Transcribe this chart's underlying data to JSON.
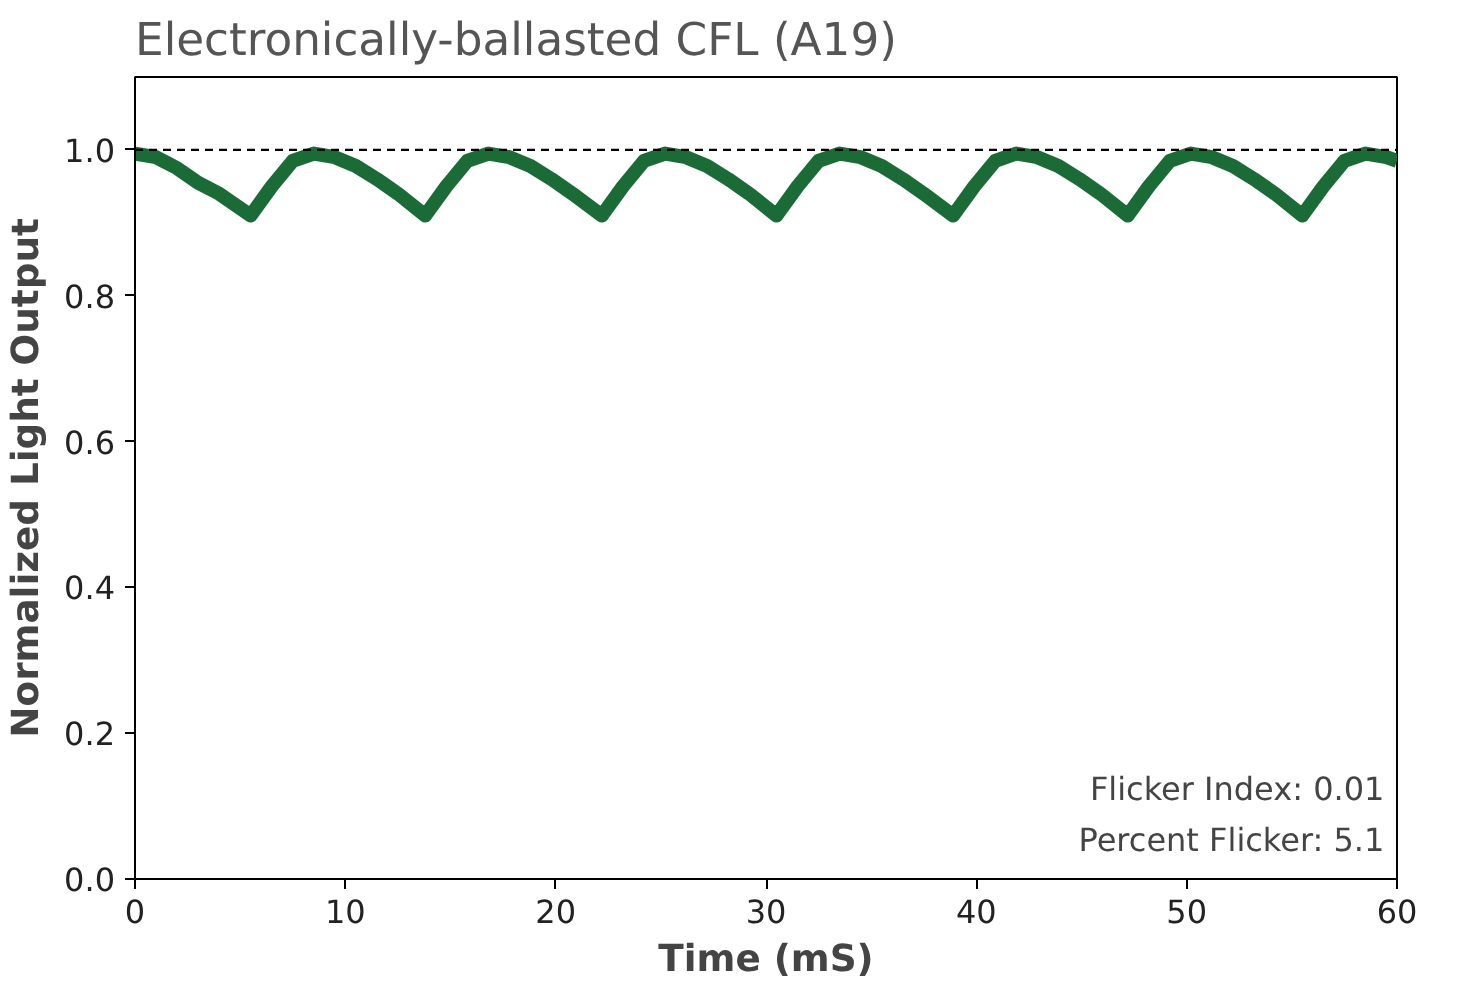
{
  "chart_data": {
    "type": "line",
    "title": "Electronically-ballasted CFL (A19)",
    "xlabel": "Time (mS)",
    "ylabel": "Normalized Light Output",
    "x": [
      0,
      1,
      2,
      3,
      4,
      5.5,
      6.5,
      7.5,
      8.5,
      9.5,
      10.5,
      11.5,
      12.5,
      13.8,
      14.8,
      15.8,
      16.8,
      17.8,
      18.8,
      19.8,
      20.8,
      22.2,
      23.2,
      24.2,
      25.2,
      26.2,
      27.2,
      28.2,
      29.2,
      30.5,
      31.5,
      32.5,
      33.5,
      34.5,
      35.5,
      36.5,
      37.5,
      38.9,
      39.9,
      40.9,
      41.9,
      42.9,
      43.9,
      44.9,
      45.9,
      47.2,
      48.2,
      49.2,
      50.2,
      51.2,
      52.2,
      53.2,
      54.2,
      55.5,
      56.5,
      57.5,
      58.5,
      59.5,
      60
    ],
    "series": [
      {
        "color": "#1a6b35",
        "values": [
          0.995,
          0.99,
          0.975,
          0.955,
          0.94,
          0.91,
          0.95,
          0.985,
          0.995,
          0.99,
          0.978,
          0.96,
          0.94,
          0.91,
          0.95,
          0.985,
          0.995,
          0.99,
          0.978,
          0.96,
          0.94,
          0.91,
          0.95,
          0.985,
          0.995,
          0.99,
          0.978,
          0.96,
          0.94,
          0.91,
          0.95,
          0.985,
          0.995,
          0.99,
          0.978,
          0.96,
          0.94,
          0.91,
          0.95,
          0.985,
          0.995,
          0.99,
          0.978,
          0.96,
          0.94,
          0.91,
          0.95,
          0.985,
          0.995,
          0.99,
          0.978,
          0.96,
          0.94,
          0.91,
          0.95,
          0.985,
          0.995,
          0.99,
          0.985
        ]
      }
    ],
    "xlim": [
      0,
      60
    ],
    "xticks": [
      0,
      10,
      20,
      30,
      40,
      50,
      60
    ],
    "ylim": [
      0,
      1.1
    ],
    "yticks": [
      {
        "value": 0,
        "label": "0.0"
      },
      {
        "value": 0.2,
        "label": "0.2"
      },
      {
        "value": 0.4,
        "label": "0.4"
      },
      {
        "value": 0.6,
        "label": "0.6"
      },
      {
        "value": 0.8,
        "label": "0.8"
      },
      {
        "value": 1,
        "label": "1.0"
      }
    ],
    "ref_lines": [
      {
        "axis": "y",
        "value": 1,
        "label": null,
        "color": "#000000",
        "line_style": "dashed"
      }
    ],
    "annotations": [
      "Flicker Index: 0.01",
      "Percent Flicker: 5.1"
    ],
    "grid": false,
    "marker": "none",
    "line_style": "solid"
  }
}
